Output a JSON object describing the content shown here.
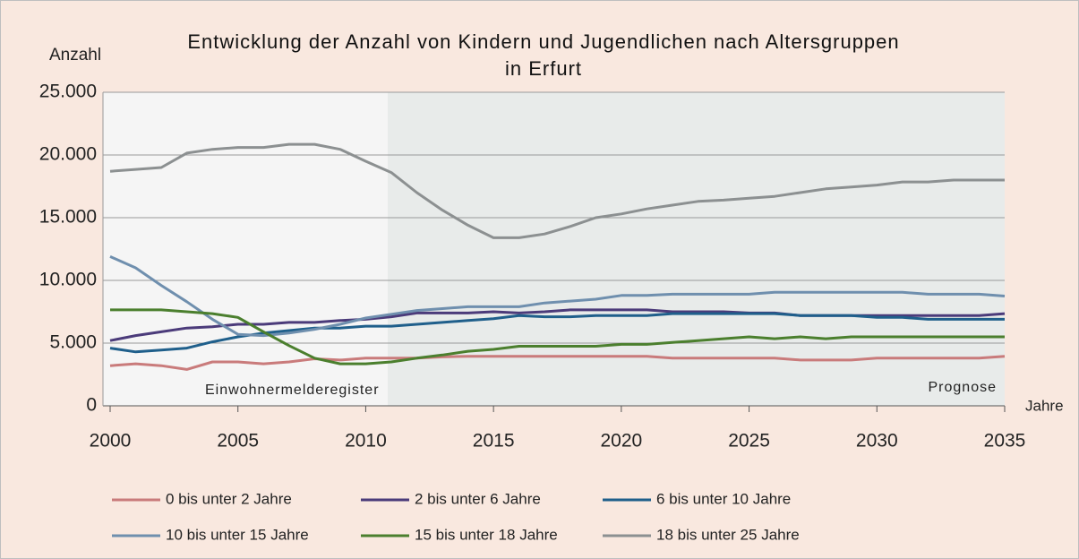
{
  "chart_data": {
    "type": "line",
    "title": "Entwicklung der Anzahl von Kindern und Jugendlichen nach Altersgruppen in Erfurt",
    "y_label": "Anzahl",
    "x_label": "Jahre",
    "annotations": [
      "Einwohnermelderegister",
      "Prognose"
    ],
    "x": [
      2000,
      2001,
      2002,
      2003,
      2004,
      2005,
      2006,
      2007,
      2008,
      2009,
      2010,
      2011,
      2012,
      2013,
      2014,
      2015,
      2016,
      2017,
      2018,
      2019,
      2020,
      2021,
      2022,
      2023,
      2024,
      2025,
      2026,
      2027,
      2028,
      2029,
      2030,
      2031,
      2032,
      2033,
      2034,
      2035
    ],
    "xlim": [
      2000,
      2035
    ],
    "xticks": [
      2000,
      2005,
      2010,
      2015,
      2020,
      2025,
      2030,
      2035
    ],
    "ylim": [
      0,
      25000
    ],
    "yticks": [
      {
        "value": 0,
        "label": "0"
      },
      {
        "value": 5000,
        "label": "5.000"
      },
      {
        "value": 10000,
        "label": "10.000"
      },
      {
        "value": 15000,
        "label": "15.000"
      },
      {
        "value": 20000,
        "label": "20.000"
      },
      {
        "value": 25000,
        "label": "25.000"
      }
    ],
    "grid": true,
    "legend": "bottom",
    "series": [
      {
        "name": "0 bis unter 2 Jahre",
        "color": "#c97b7b",
        "values": [
          3200,
          3350,
          3200,
          2900,
          3500,
          3500,
          3350,
          3500,
          3750,
          3650,
          3800,
          3800,
          3800,
          3900,
          3950,
          3950,
          3950,
          3950,
          3950,
          3950,
          3950,
          3950,
          3800,
          3800,
          3800,
          3800,
          3800,
          3650,
          3650,
          3650,
          3800,
          3800,
          3800,
          3800,
          3800,
          3950
        ]
      },
      {
        "name": "2 bis unter 6 Jahre",
        "color": "#4b3b7a",
        "values": [
          5200,
          5600,
          5900,
          6200,
          6300,
          6500,
          6500,
          6650,
          6650,
          6800,
          6900,
          7100,
          7400,
          7400,
          7400,
          7500,
          7400,
          7500,
          7650,
          7650,
          7650,
          7650,
          7500,
          7500,
          7500,
          7400,
          7400,
          7200,
          7200,
          7200,
          7200,
          7200,
          7200,
          7200,
          7200,
          7350
        ]
      },
      {
        "name": "6 bis unter 10 Jahre",
        "color": "#1f5f8b",
        "values": [
          4600,
          4300,
          4450,
          4600,
          5100,
          5500,
          5800,
          6000,
          6200,
          6200,
          6350,
          6350,
          6500,
          6650,
          6800,
          6950,
          7200,
          7100,
          7100,
          7200,
          7200,
          7200,
          7350,
          7350,
          7350,
          7350,
          7350,
          7200,
          7200,
          7200,
          7050,
          7050,
          6900,
          6900,
          6900,
          6900
        ]
      },
      {
        "name": "10 bis unter 15 Jahre",
        "color": "#6f8fae",
        "values": [
          11900,
          11000,
          9600,
          8300,
          6900,
          5700,
          5600,
          5800,
          6100,
          6500,
          7000,
          7300,
          7600,
          7750,
          7900,
          7900,
          7900,
          8200,
          8350,
          8500,
          8800,
          8800,
          8900,
          8900,
          8900,
          8900,
          9050,
          9050,
          9050,
          9050,
          9050,
          9050,
          8900,
          8900,
          8900,
          8750
        ]
      },
      {
        "name": "15 bis unter 18 Jahre",
        "color": "#4b7f2e",
        "values": [
          7650,
          7650,
          7650,
          7500,
          7350,
          7050,
          5900,
          4800,
          3800,
          3350,
          3350,
          3500,
          3800,
          4050,
          4350,
          4500,
          4750,
          4750,
          4750,
          4750,
          4900,
          4900,
          5050,
          5200,
          5350,
          5500,
          5350,
          5500,
          5350,
          5500,
          5500,
          5500,
          5500,
          5500,
          5500,
          5500
        ]
      },
      {
        "name": "18 bis unter 25 Jahre",
        "color": "#8c9091",
        "values": [
          18700,
          18850,
          19000,
          20150,
          20450,
          20600,
          20600,
          20850,
          20850,
          20450,
          19500,
          18600,
          17000,
          15600,
          14400,
          13400,
          13400,
          13700,
          14300,
          15000,
          15300,
          15700,
          16000,
          16300,
          16400,
          16550,
          16700,
          17000,
          17300,
          17450,
          17600,
          17850,
          17850,
          18000,
          18000,
          18000
        ]
      }
    ]
  }
}
